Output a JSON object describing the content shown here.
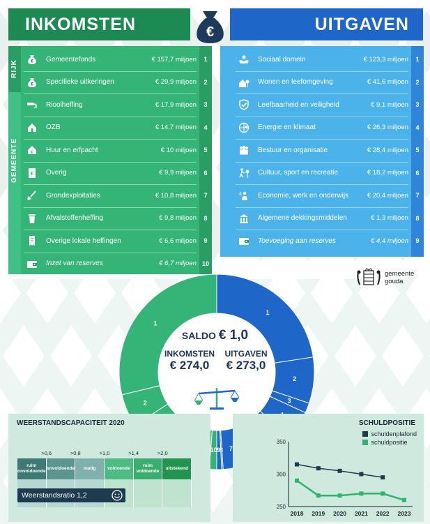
{
  "header": {
    "left_title": "INKOMSTEN",
    "right_title": "UITGAVEN",
    "badge_symbol": "€"
  },
  "income": {
    "rijk_label": "RIJK",
    "gemeente_label": "GEMEENTE",
    "items": [
      {
        "label": "Gemeentefonds",
        "value": "€ 157,7 miljoen",
        "num": "1",
        "icon": "money-bag-icon",
        "italic": false
      },
      {
        "label": "Specifieke uitkeringen",
        "value": "€ 29,9 miljoen",
        "num": "2",
        "icon": "money-bag-icon",
        "italic": false
      },
      {
        "label": "Rioolheffing",
        "value": "€ 17,9 miljoen",
        "num": "3",
        "icon": "sewer-icon",
        "italic": false
      },
      {
        "label": "OZB",
        "value": "€ 14,7 miljoen",
        "num": "4",
        "icon": "house-icon",
        "italic": false
      },
      {
        "label": "Huur en erfpacht",
        "value": "€ 10 miljoen",
        "num": "5",
        "icon": "house-euro-icon",
        "italic": false
      },
      {
        "label": "Overig",
        "value": "€ 9,9 miljoen",
        "num": "6",
        "icon": "document-euro-icon",
        "italic": false
      },
      {
        "label": "Grondexploitaties",
        "value": "€ 10,8 miljoen",
        "num": "7",
        "icon": "shovel-icon",
        "italic": false
      },
      {
        "label": "Afvalstoffenheffing",
        "value": "€ 9,8 miljoen",
        "num": "8",
        "icon": "waste-bin-icon",
        "italic": false
      },
      {
        "label": "Overige lokale heffingen",
        "value": "€ 6,6 miljoen",
        "num": "9",
        "icon": "receipt-icon",
        "italic": false
      },
      {
        "label": "Inzet van reserves",
        "value": "€ 6,7 miljoen",
        "num": "10",
        "icon": "wallet-icon",
        "italic": true
      }
    ]
  },
  "expenses": {
    "items": [
      {
        "label": "Sociaal domein",
        "value": "€ 123,3 miljoen",
        "num": "1",
        "icon": "care-hands-icon",
        "italic": false
      },
      {
        "label": "Wonen en leefomgeving",
        "value": "€ 41,6 miljoen",
        "num": "2",
        "icon": "house-tree-icon",
        "italic": false
      },
      {
        "label": "Leefbaarheid en veiligheid",
        "value": "€ 9,1 miljoen",
        "num": "3",
        "icon": "shield-check-icon",
        "italic": false
      },
      {
        "label": "Energie en klimaat",
        "value": "€ 26,3 miljoen",
        "num": "4",
        "icon": "globe-leaf-icon",
        "italic": false
      },
      {
        "label": "Bestuur en organisatie",
        "value": "€ 28,4 miljoen",
        "num": "5",
        "icon": "people-icon",
        "italic": false
      },
      {
        "label": "Cultuur, sport en recreatie",
        "value": "€ 18,2 miljoen",
        "num": "6",
        "icon": "sport-tree-icon",
        "italic": false
      },
      {
        "label": "Economie, werk en onderwijs",
        "value": "€ 20,4 miljoen",
        "num": "7",
        "icon": "worker-icon",
        "italic": false
      },
      {
        "label": "Algemene dekkingsmiddelen",
        "value": "€ 1,3 miljoen",
        "num": "8",
        "icon": "building-icon",
        "italic": false
      },
      {
        "label": "Toevoeging aan reserves",
        "value": "€ 4,4 miljoen",
        "num": "9",
        "icon": "wallet-icon",
        "italic": true
      }
    ]
  },
  "logo": {
    "line1": "gemeente",
    "line2": "gouda"
  },
  "saldo": {
    "saldo_label": "SALDO",
    "saldo_value": "€ 1,0",
    "inkomsten_label": "INKOMSTEN",
    "inkomsten_value": "€ 274,0",
    "uitgaven_label": "UITGAVEN",
    "uitgaven_value": "€ 273,0"
  },
  "weerstand": {
    "title": "WEERSTANDSCAPACITEIT 2020",
    "thresholds": [
      ">0,6",
      ">0,8",
      ">1,0",
      ">1,4",
      ">2,0"
    ],
    "categories": [
      {
        "label": "ruim onvoldoende",
        "color": "#3d7a76"
      },
      {
        "label": "onvoldoende",
        "color": "#5a9590"
      },
      {
        "label": "matig",
        "color": "#7fb0ab"
      },
      {
        "label": "voldoende",
        "color": "#4dbb82"
      },
      {
        "label": "ruim voldoende",
        "color": "#3aae6e"
      },
      {
        "label": "uitstekend",
        "color": "#23944f"
      }
    ],
    "ratio_text": "Weerstandsratio 1,2",
    "ratio_value": 1.2
  },
  "chart_data": [
    {
      "type": "pie",
      "title": "Inkomsten en uitgaven (donut)",
      "series": [
        {
          "name": "Uitgaven",
          "labels": [
            "1",
            "2",
            "3",
            "4",
            "5",
            "6",
            "7",
            "8",
            "9"
          ],
          "values": [
            123.3,
            41.6,
            9.1,
            26.3,
            28.4,
            18.2,
            20.4,
            1.3,
            4.4
          ],
          "color": "#1f66c9"
        },
        {
          "name": "Inkomsten",
          "labels": [
            "1",
            "2",
            "3",
            "4",
            "5",
            "6",
            "7",
            "8",
            "9",
            "10"
          ],
          "values": [
            157.7,
            29.9,
            17.9,
            14.7,
            10,
            9.9,
            10.8,
            9.8,
            6.6,
            6.7
          ],
          "color": "#35b478"
        }
      ]
    },
    {
      "type": "line",
      "title": "SCHULDPOSITIE",
      "x": [
        "2018",
        "2019",
        "2020",
        "2021",
        "2022",
        "2023"
      ],
      "series": [
        {
          "name": "schuldenplafond",
          "values": [
            315,
            309,
            305,
            300,
            295,
            null
          ],
          "color": "#1e3a4f"
        },
        {
          "name": "schuldpositie",
          "values": [
            290,
            267,
            267,
            270,
            270,
            260
          ],
          "color": "#2fb46f"
        }
      ],
      "ylim": [
        250,
        350
      ],
      "yticks": [
        250,
        300,
        350
      ],
      "legend": "top-right"
    }
  ]
}
